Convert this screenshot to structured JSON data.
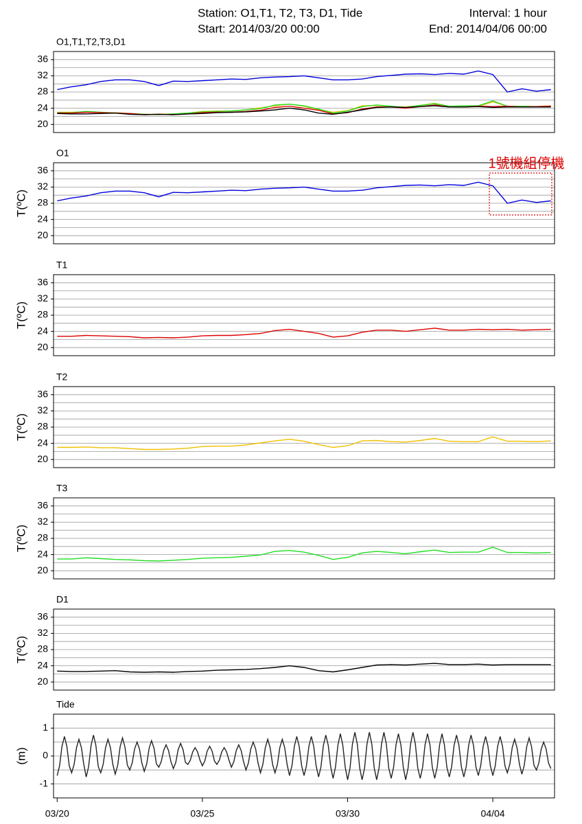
{
  "header": {
    "station": "Station: O1,T1, T2, T3, D1, Tide",
    "interval": "Interval: 1 hour",
    "start": "Start: 2014/03/20 00:00",
    "end": "End: 2014/04/06 00:00"
  },
  "chart_data": [
    {
      "type": "line",
      "title": "O1,T1,T2,T3,D1",
      "x": [
        0,
        12,
        24,
        36,
        48,
        60,
        72,
        84,
        96,
        108,
        120,
        132,
        144,
        156,
        168,
        180,
        192,
        204,
        216,
        228,
        240,
        252,
        264,
        276,
        288,
        300,
        312,
        324,
        336,
        348,
        360,
        372,
        384,
        396,
        408
      ],
      "series": [
        {
          "color": "#0000dd",
          "values": [
            28.6,
            29.3,
            29.8,
            30.6,
            31.0,
            31.0,
            30.6,
            29.6,
            30.7,
            30.6,
            30.8,
            31.0,
            31.2,
            31.1,
            31.5,
            31.7,
            31.8,
            32.0,
            31.5,
            31.0,
            31.0,
            31.2,
            31.8,
            32.1,
            32.4,
            32.5,
            32.3,
            32.6,
            32.4,
            33.2,
            32.3,
            28.0,
            28.8,
            28.2,
            28.6
          ]
        },
        {
          "color": "#f0c000",
          "values": [
            23.0,
            23.0,
            23.1,
            22.9,
            22.9,
            22.7,
            22.5,
            22.5,
            22.6,
            22.8,
            23.2,
            23.3,
            23.3,
            23.6,
            24.1,
            24.6,
            25.0,
            24.5,
            23.7,
            23.0,
            23.4,
            24.6,
            24.7,
            24.4,
            24.3,
            24.7,
            25.2,
            24.5,
            24.4,
            24.4,
            25.6,
            24.5,
            24.5,
            24.4,
            24.6
          ]
        },
        {
          "color": "#22dd22",
          "values": [
            22.9,
            22.9,
            23.2,
            23.0,
            22.8,
            22.7,
            22.5,
            22.4,
            22.6,
            22.8,
            23.1,
            23.2,
            23.3,
            23.6,
            23.9,
            24.8,
            25.0,
            24.6,
            23.8,
            22.8,
            23.3,
            24.4,
            24.8,
            24.5,
            24.2,
            24.7,
            25.1,
            24.5,
            24.6,
            24.6,
            25.8,
            24.5,
            24.5,
            24.4,
            24.5
          ]
        },
        {
          "color": "#dd0000",
          "values": [
            22.8,
            22.8,
            23.0,
            22.9,
            22.8,
            22.7,
            22.4,
            22.5,
            22.4,
            22.6,
            22.9,
            23.0,
            23.0,
            23.2,
            23.5,
            24.2,
            24.5,
            24.0,
            23.5,
            22.6,
            22.9,
            23.8,
            24.3,
            24.3,
            24.0,
            24.4,
            24.8,
            24.3,
            24.3,
            24.5,
            24.4,
            24.5,
            24.3,
            24.4,
            24.5
          ]
        },
        {
          "color": "#000000",
          "values": [
            22.7,
            22.6,
            22.6,
            22.7,
            22.8,
            22.5,
            22.4,
            22.5,
            22.4,
            22.6,
            22.7,
            22.9,
            23.0,
            23.1,
            23.3,
            23.6,
            24.0,
            23.6,
            22.8,
            22.5,
            23.0,
            23.6,
            24.2,
            24.3,
            24.2,
            24.4,
            24.6,
            24.3,
            24.3,
            24.4,
            24.2,
            24.3,
            24.3,
            24.3,
            24.3
          ]
        }
      ],
      "xlim": [
        -3,
        411
      ],
      "ylim": [
        18,
        38
      ],
      "yticks": [
        20,
        24,
        28,
        32,
        36
      ],
      "minor_yticks": [
        22,
        26,
        30,
        34
      ],
      "grid": true
    },
    {
      "type": "line",
      "title": "O1",
      "ylabel": "T(ºC)",
      "annotation": "1號機組停機",
      "x": [
        0,
        12,
        24,
        36,
        48,
        60,
        72,
        84,
        96,
        108,
        120,
        132,
        144,
        156,
        168,
        180,
        192,
        204,
        216,
        228,
        240,
        252,
        264,
        276,
        288,
        300,
        312,
        324,
        336,
        348,
        360,
        372,
        384,
        396,
        408
      ],
      "color": "#0000dd",
      "values": [
        28.6,
        29.3,
        29.8,
        30.6,
        31.0,
        31.0,
        30.6,
        29.6,
        30.7,
        30.6,
        30.8,
        31.0,
        31.2,
        31.1,
        31.5,
        31.7,
        31.8,
        32.0,
        31.5,
        31.0,
        31.0,
        31.2,
        31.8,
        32.1,
        32.4,
        32.5,
        32.3,
        32.6,
        32.4,
        33.2,
        32.3,
        28.0,
        28.8,
        28.2,
        28.6
      ],
      "xlim": [
        -3,
        411
      ],
      "ylim": [
        18,
        38
      ],
      "yticks": [
        20,
        24,
        28,
        32,
        36
      ],
      "minor_yticks": [
        22,
        26,
        30,
        34
      ],
      "grid": true
    },
    {
      "type": "line",
      "title": "T1",
      "ylabel": "T(ºC)",
      "x": [
        0,
        12,
        24,
        36,
        48,
        60,
        72,
        84,
        96,
        108,
        120,
        132,
        144,
        156,
        168,
        180,
        192,
        204,
        216,
        228,
        240,
        252,
        264,
        276,
        288,
        300,
        312,
        324,
        336,
        348,
        360,
        372,
        384,
        396,
        408
      ],
      "color": "#dd0000",
      "values": [
        22.8,
        22.8,
        23.0,
        22.9,
        22.8,
        22.7,
        22.4,
        22.5,
        22.4,
        22.6,
        22.9,
        23.0,
        23.0,
        23.2,
        23.5,
        24.2,
        24.5,
        24.0,
        23.5,
        22.6,
        22.9,
        23.8,
        24.3,
        24.3,
        24.0,
        24.4,
        24.8,
        24.3,
        24.3,
        24.5,
        24.4,
        24.5,
        24.3,
        24.4,
        24.5
      ],
      "xlim": [
        -3,
        411
      ],
      "ylim": [
        18,
        38
      ],
      "yticks": [
        20,
        24,
        28,
        32,
        36
      ],
      "minor_yticks": [
        22,
        26,
        30,
        34
      ],
      "grid": true
    },
    {
      "type": "line",
      "title": "T2",
      "ylabel": "T(ºC)",
      "x": [
        0,
        12,
        24,
        36,
        48,
        60,
        72,
        84,
        96,
        108,
        120,
        132,
        144,
        156,
        168,
        180,
        192,
        204,
        216,
        228,
        240,
        252,
        264,
        276,
        288,
        300,
        312,
        324,
        336,
        348,
        360,
        372,
        384,
        396,
        408
      ],
      "color": "#f0c000",
      "values": [
        23.0,
        23.0,
        23.1,
        22.9,
        22.9,
        22.7,
        22.5,
        22.5,
        22.6,
        22.8,
        23.2,
        23.3,
        23.3,
        23.6,
        24.1,
        24.6,
        25.0,
        24.5,
        23.7,
        23.0,
        23.4,
        24.6,
        24.7,
        24.4,
        24.3,
        24.7,
        25.2,
        24.5,
        24.4,
        24.4,
        25.6,
        24.5,
        24.5,
        24.4,
        24.6
      ],
      "xlim": [
        -3,
        411
      ],
      "ylim": [
        18,
        38
      ],
      "yticks": [
        20,
        24,
        28,
        32,
        36
      ],
      "minor_yticks": [
        22,
        26,
        30,
        34
      ],
      "grid": true
    },
    {
      "type": "line",
      "title": "T3",
      "ylabel": "T(ºC)",
      "x": [
        0,
        12,
        24,
        36,
        48,
        60,
        72,
        84,
        96,
        108,
        120,
        132,
        144,
        156,
        168,
        180,
        192,
        204,
        216,
        228,
        240,
        252,
        264,
        276,
        288,
        300,
        312,
        324,
        336,
        348,
        360,
        372,
        384,
        396,
        408
      ],
      "color": "#22dd22",
      "values": [
        22.9,
        22.9,
        23.2,
        23.0,
        22.8,
        22.7,
        22.5,
        22.4,
        22.6,
        22.8,
        23.1,
        23.2,
        23.3,
        23.6,
        23.9,
        24.8,
        25.0,
        24.6,
        23.8,
        22.8,
        23.3,
        24.4,
        24.8,
        24.5,
        24.2,
        24.7,
        25.1,
        24.5,
        24.6,
        24.6,
        25.8,
        24.5,
        24.5,
        24.4,
        24.5
      ],
      "xlim": [
        -3,
        411
      ],
      "ylim": [
        18,
        38
      ],
      "yticks": [
        20,
        24,
        28,
        32,
        36
      ],
      "minor_yticks": [
        22,
        26,
        30,
        34
      ],
      "grid": true
    },
    {
      "type": "line",
      "title": "D1",
      "ylabel": "T(ºC)",
      "x": [
        0,
        12,
        24,
        36,
        48,
        60,
        72,
        84,
        96,
        108,
        120,
        132,
        144,
        156,
        168,
        180,
        192,
        204,
        216,
        228,
        240,
        252,
        264,
        276,
        288,
        300,
        312,
        324,
        336,
        348,
        360,
        372,
        384,
        396,
        408
      ],
      "color": "#000000",
      "values": [
        22.7,
        22.6,
        22.6,
        22.7,
        22.8,
        22.5,
        22.4,
        22.5,
        22.4,
        22.6,
        22.7,
        22.9,
        23.0,
        23.1,
        23.3,
        23.6,
        24.0,
        23.6,
        22.8,
        22.5,
        23.0,
        23.6,
        24.2,
        24.3,
        24.2,
        24.4,
        24.6,
        24.3,
        24.3,
        24.4,
        24.2,
        24.3,
        24.3,
        24.3,
        24.3
      ],
      "xlim": [
        -3,
        411
      ],
      "ylim": [
        18,
        38
      ],
      "yticks": [
        20,
        24,
        28,
        32,
        36
      ],
      "minor_yticks": [
        22,
        26,
        30,
        34
      ],
      "grid": true
    },
    {
      "type": "line",
      "title": "Tide",
      "ylabel": "(m)",
      "x": [
        0,
        2,
        4,
        6,
        8,
        10,
        12,
        14,
        16,
        18,
        20,
        22,
        24,
        26,
        28,
        30,
        32,
        34,
        36,
        38,
        40,
        42,
        44,
        46,
        48,
        50,
        52,
        54,
        56,
        58,
        60,
        62,
        64,
        66,
        68,
        70,
        72,
        74,
        76,
        78,
        80,
        82,
        84,
        86,
        88,
        90,
        92,
        94,
        96,
        98,
        100,
        102,
        104,
        106,
        108,
        110,
        112,
        114,
        116,
        118,
        120,
        122,
        124,
        126,
        128,
        130,
        132,
        134,
        136,
        138,
        140,
        142,
        144,
        146,
        148,
        150,
        152,
        154,
        156,
        158,
        160,
        162,
        164,
        166,
        168,
        170,
        172,
        174,
        176,
        178,
        180,
        182,
        184,
        186,
        188,
        190,
        192,
        194,
        196,
        198,
        200,
        202,
        204,
        206,
        208,
        210,
        212,
        214,
        216,
        218,
        220,
        222,
        224,
        226,
        228,
        230,
        232,
        234,
        236,
        238,
        240,
        242,
        244,
        246,
        248,
        250,
        252,
        254,
        256,
        258,
        260,
        262,
        264,
        266,
        268,
        270,
        272,
        274,
        276,
        278,
        280,
        282,
        284,
        286,
        288,
        290,
        292,
        294,
        296,
        298,
        300,
        302,
        304,
        306,
        308,
        310,
        312,
        314,
        316,
        318,
        320,
        322,
        324,
        326,
        328,
        330,
        332,
        334,
        336,
        338,
        340,
        342,
        344,
        346,
        348,
        350,
        352,
        354,
        356,
        358,
        360,
        362,
        364,
        366,
        368,
        370,
        372,
        374,
        376,
        378,
        380,
        382,
        384,
        386,
        388,
        390,
        392,
        394,
        396,
        398,
        400,
        402,
        404,
        406,
        408
      ],
      "color": "#222222",
      "values": [
        -0.7,
        -0.35,
        0.35,
        0.7,
        0.35,
        -0.35,
        -0.6,
        -0.3,
        0.3,
        0.6,
        0.3,
        -0.3,
        -0.75,
        -0.38,
        0.38,
        0.75,
        0.38,
        -0.38,
        -0.6,
        -0.3,
        0.3,
        0.6,
        0.3,
        -0.3,
        -0.65,
        -0.33,
        0.33,
        0.65,
        0.33,
        -0.33,
        -0.5,
        -0.25,
        0.25,
        0.5,
        0.25,
        -0.25,
        -0.55,
        -0.28,
        0.28,
        0.55,
        0.28,
        -0.28,
        -0.4,
        -0.2,
        0.2,
        0.4,
        0.2,
        -0.2,
        -0.45,
        -0.23,
        0.23,
        0.45,
        0.23,
        -0.23,
        -0.3,
        -0.15,
        0.15,
        0.3,
        0.15,
        -0.15,
        -0.35,
        -0.18,
        0.18,
        0.35,
        0.18,
        -0.18,
        -0.3,
        -0.15,
        0.15,
        0.3,
        0.15,
        -0.15,
        -0.4,
        -0.2,
        0.2,
        0.4,
        0.2,
        -0.2,
        -0.5,
        -0.25,
        0.25,
        0.5,
        0.25,
        -0.25,
        -0.6,
        -0.3,
        0.3,
        0.6,
        0.3,
        -0.3,
        -0.6,
        -0.3,
        0.3,
        0.6,
        0.3,
        -0.3,
        -0.7,
        -0.35,
        0.35,
        0.7,
        0.35,
        -0.35,
        -0.7,
        -0.35,
        0.35,
        0.7,
        0.35,
        -0.35,
        -0.75,
        -0.38,
        0.38,
        0.75,
        0.38,
        -0.38,
        -0.8,
        -0.4,
        0.4,
        0.8,
        0.4,
        -0.4,
        -0.85,
        -0.43,
        0.43,
        0.85,
        0.43,
        -0.43,
        -0.85,
        -0.43,
        0.43,
        0.85,
        0.43,
        -0.43,
        -0.85,
        -0.43,
        0.43,
        0.85,
        0.43,
        -0.43,
        -0.8,
        -0.4,
        0.4,
        0.8,
        0.4,
        -0.4,
        -0.85,
        -0.43,
        0.43,
        0.85,
        0.43,
        -0.43,
        -0.8,
        -0.4,
        0.4,
        0.8,
        0.4,
        -0.4,
        -0.8,
        -0.4,
        0.4,
        0.8,
        0.4,
        -0.4,
        -0.75,
        -0.38,
        0.38,
        0.75,
        0.38,
        -0.38,
        -0.75,
        -0.38,
        0.38,
        0.75,
        0.38,
        -0.38,
        -0.7,
        -0.35,
        0.35,
        0.7,
        0.35,
        -0.35,
        -0.7,
        -0.35,
        0.35,
        0.7,
        0.35,
        -0.35,
        -0.6,
        -0.3,
        0.3,
        0.6,
        0.3,
        -0.3,
        -0.65,
        -0.33,
        0.33,
        0.65,
        0.33,
        -0.33,
        -0.5,
        -0.25,
        0.25,
        0.5,
        0.25,
        -0.25,
        -0.45
      ],
      "xlim": [
        -3,
        411
      ],
      "ylim": [
        -1.5,
        1.5
      ],
      "yticks": [
        -1,
        0,
        1
      ],
      "minor_yticks": [
        -0.5,
        0.5
      ],
      "grid": true,
      "xticks": [
        {
          "value": 0,
          "label": "03/20"
        },
        {
          "value": 120,
          "label": "03/25"
        },
        {
          "value": 240,
          "label": "03/30"
        },
        {
          "value": 360,
          "label": "04/04"
        }
      ]
    }
  ]
}
